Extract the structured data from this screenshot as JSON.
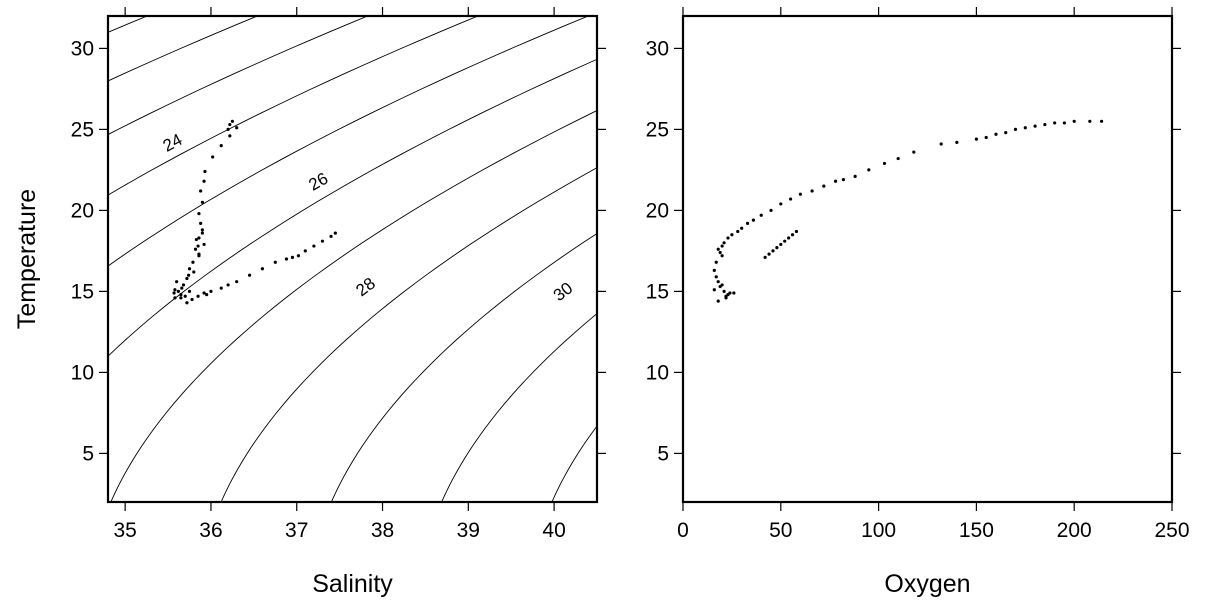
{
  "chart_data": [
    {
      "type": "scatter",
      "xlabel": "Salinity",
      "ylabel": "Temperature",
      "xlim": [
        34.8,
        40.5
      ],
      "ylim": [
        2,
        32
      ],
      "xticks": [
        35,
        36,
        37,
        38,
        39,
        40
      ],
      "yticks": [
        5,
        10,
        15,
        20,
        25,
        30
      ],
      "grid": false,
      "density_contours": {
        "levels": [
          21,
          22,
          23,
          24,
          25,
          26,
          27,
          28,
          29,
          30,
          31,
          32,
          33
        ],
        "labeled": [
          {
            "level": 24,
            "text": "24",
            "x": 35.55,
            "y": 24.2
          },
          {
            "level": 26,
            "text": "26",
            "x": 37.25,
            "y": 21.8
          },
          {
            "level": 28,
            "text": "28",
            "x": 37.8,
            "y": 15.3
          },
          {
            "level": 30,
            "text": "30",
            "x": 40.1,
            "y": 15.0
          }
        ]
      },
      "x": [
        36.25,
        36.22,
        36.2,
        36.3,
        36.22,
        36.12,
        36.02,
        35.93,
        35.92,
        35.88,
        35.9,
        35.86,
        35.88,
        35.9,
        35.83,
        35.85,
        35.86,
        35.82,
        35.86,
        35.9,
        35.92,
        35.86,
        35.79,
        35.75,
        35.74,
        35.72,
        35.68,
        35.66,
        35.6,
        35.58,
        35.57,
        35.58,
        35.62,
        35.65,
        35.72,
        35.78,
        35.85,
        35.92,
        35.95,
        36.0,
        36.12,
        36.2,
        36.3,
        36.45,
        36.6,
        36.75,
        36.88,
        36.95,
        37.02,
        37.1,
        37.2,
        37.3,
        37.4,
        37.45,
        35.7,
        35.75,
        35.8,
        35.65
      ],
      "y": [
        25.5,
        25.3,
        25.0,
        25.1,
        24.6,
        24.0,
        23.3,
        22.4,
        21.8,
        21.2,
        20.5,
        19.8,
        19.2,
        18.6,
        18.2,
        17.8,
        17.3,
        17.6,
        18.3,
        18.8,
        17.9,
        17.2,
        16.8,
        16.4,
        16.0,
        15.8,
        15.4,
        15.2,
        15.6,
        15.1,
        14.9,
        14.6,
        15.0,
        14.6,
        14.3,
        14.5,
        14.7,
        14.9,
        14.8,
        15.0,
        15.2,
        15.4,
        15.6,
        16.0,
        16.4,
        16.8,
        17.0,
        17.1,
        17.2,
        17.5,
        17.8,
        18.1,
        18.4,
        18.6,
        14.7,
        15.0,
        16.2,
        14.8
      ]
    },
    {
      "type": "scatter",
      "xlabel": "Oxygen",
      "ylabel": "",
      "xlim": [
        0,
        250
      ],
      "ylim": [
        2,
        32
      ],
      "xticks": [
        0,
        50,
        100,
        150,
        200,
        250
      ],
      "yticks": [
        5,
        10,
        15,
        20,
        25,
        30
      ],
      "grid": false,
      "x": [
        214,
        208,
        200,
        195,
        190,
        185,
        180,
        175,
        170,
        165,
        160,
        155,
        150,
        140,
        132,
        118,
        110,
        103,
        95,
        88,
        82,
        78,
        72,
        66,
        60,
        55,
        50,
        45,
        40,
        36,
        33,
        30,
        28,
        25,
        23,
        21,
        20,
        18,
        19,
        20,
        17,
        16,
        17,
        18,
        19,
        21,
        23,
        26,
        22,
        18,
        16,
        20,
        24,
        22,
        42,
        44,
        46,
        48,
        50,
        52,
        54,
        56,
        58
      ],
      "y": [
        25.5,
        25.5,
        25.5,
        25.4,
        25.4,
        25.3,
        25.2,
        25.1,
        25.0,
        24.8,
        24.7,
        24.5,
        24.4,
        24.2,
        24.1,
        23.6,
        23.2,
        22.9,
        22.5,
        22.1,
        21.9,
        21.8,
        21.5,
        21.2,
        21.0,
        20.7,
        20.4,
        20.0,
        19.7,
        19.4,
        19.2,
        18.9,
        18.7,
        18.5,
        18.3,
        18.0,
        17.8,
        17.6,
        17.4,
        17.2,
        16.8,
        16.3,
        15.9,
        15.6,
        15.3,
        15.0,
        14.8,
        14.9,
        14.6,
        14.4,
        15.1,
        15.4,
        14.9,
        14.7,
        17.1,
        17.3,
        17.5,
        17.7,
        17.9,
        18.1,
        18.3,
        18.5,
        18.7
      ]
    }
  ]
}
